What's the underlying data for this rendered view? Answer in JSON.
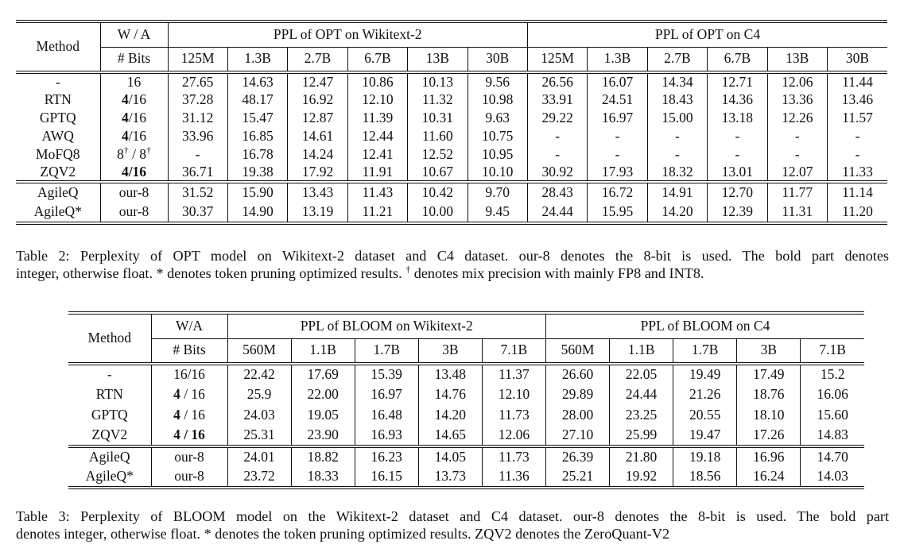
{
  "page": {
    "background": "#ffffff",
    "text_color": "#111111"
  },
  "table2": {
    "header": {
      "method": "Method",
      "wa_top": "W / A",
      "wa_bottom": "# Bits",
      "group1": "PPL of OPT on Wikitext-2",
      "group2": "PPL of OPT on C4",
      "sizes1": [
        "125M",
        "1.3B",
        "2.7B",
        "6.7B",
        "13B",
        "30B"
      ],
      "sizes2": [
        "125M",
        "1.3B",
        "2.7B",
        "6.7B",
        "13B",
        "30B"
      ]
    },
    "body": [
      {
        "method": "-",
        "wa": [
          "16"
        ],
        "vals": [
          "27.65",
          "14.63",
          "12.47",
          "10.86",
          "10.13",
          "9.56",
          "26.56",
          "16.07",
          "14.34",
          "12.71",
          "12.06",
          "11.44"
        ]
      },
      {
        "method": "RTN",
        "wa": [
          {
            "b": "4"
          },
          "/16"
        ],
        "vals": [
          "37.28",
          "48.17",
          "16.92",
          "12.10",
          "11.32",
          "10.98",
          "33.91",
          "24.51",
          "18.43",
          "14.36",
          "13.36",
          "13.46"
        ]
      },
      {
        "method": "GPTQ",
        "wa": [
          {
            "b": "4"
          },
          "/16"
        ],
        "vals": [
          "31.12",
          "15.47",
          "12.87",
          "11.39",
          "10.31",
          "9.63",
          "29.22",
          "16.97",
          "15.00",
          "13.18",
          "12.26",
          "11.57"
        ]
      },
      {
        "method": "AWQ",
        "wa": [
          {
            "b": "4"
          },
          "/16"
        ],
        "vals": [
          "33.96",
          "16.85",
          "14.61",
          "12.44",
          "11.60",
          "10.75",
          "-",
          "-",
          "-",
          "-",
          "-",
          "-"
        ]
      },
      {
        "method": "MoFQ8",
        "wa": [
          "8",
          {
            "sup": "†"
          },
          " / 8",
          {
            "sup": "†"
          }
        ],
        "vals": [
          "-",
          "16.78",
          "14.24",
          "12.41",
          "12.52",
          "10.95",
          "-",
          "-",
          "-",
          "-",
          "-",
          "-"
        ]
      },
      {
        "method": "ZQV2",
        "wa": [
          {
            "b": "4/16"
          }
        ],
        "vals": [
          "36.71",
          "19.38",
          "17.92",
          "11.91",
          "10.67",
          "10.10",
          "30.92",
          "17.93",
          "18.32",
          "13.01",
          "12.07",
          "11.33"
        ]
      }
    ],
    "ours": [
      {
        "method": "AgileQ",
        "wa": [
          "our-8"
        ],
        "vals": [
          "31.52",
          "15.90",
          "13.43",
          "11.43",
          "10.42",
          "9.70",
          "28.43",
          "16.72",
          "14.91",
          "12.70",
          "11.77",
          "11.14"
        ]
      },
      {
        "method": "AgileQ*",
        "wa": [
          "our-8"
        ],
        "vals": [
          "30.37",
          "14.90",
          "13.19",
          "11.21",
          "10.00",
          "9.45",
          "24.44",
          "15.95",
          "14.20",
          "12.39",
          "11.31",
          "11.20"
        ]
      }
    ],
    "caption": {
      "line1": [
        "Table 2: Perplexity of OPT model on Wikitext-2 dataset and C4 dataset. our-8 denotes the 8-bit is used. The bold part denotes"
      ],
      "line2": [
        "integer, otherwise float. * denotes token pruning optimized results. ",
        {
          "sup": "†"
        },
        " denotes mix precision with mainly FP8 and INT8."
      ]
    }
  },
  "table3": {
    "header": {
      "method": "Method",
      "wa_top": "W/A",
      "wa_bottom": "# Bits",
      "group1": "PPL of BLOOM on Wikitext-2",
      "group2": "PPL of BLOOM on C4",
      "sizes1": [
        "560M",
        "1.1B",
        "1.7B",
        "3B",
        "7.1B"
      ],
      "sizes2": [
        "560M",
        "1.1B",
        "1.7B",
        "3B",
        "7.1B"
      ]
    },
    "body": [
      {
        "method": "-",
        "wa": [
          "16/16"
        ],
        "vals": [
          "22.42",
          "17.69",
          "15.39",
          "13.48",
          "11.37",
          "26.60",
          "22.05",
          "19.49",
          "17.49",
          "15.2"
        ]
      },
      {
        "method": "RTN",
        "wa": [
          {
            "b": "4"
          },
          " / 16"
        ],
        "vals": [
          "25.9",
          "22.00",
          "16.97",
          "14.76",
          "12.10",
          "29.89",
          "24.44",
          "21.26",
          "18.76",
          "16.06"
        ]
      },
      {
        "method": "GPTQ",
        "wa": [
          {
            "b": "4"
          },
          " / 16"
        ],
        "vals": [
          "24.03",
          "19.05",
          "16.48",
          "14.20",
          "11.73",
          "28.00",
          "23.25",
          "20.55",
          "18.10",
          "15.60"
        ]
      },
      {
        "method": "ZQV2",
        "wa": [
          {
            "b": "4 / 16"
          }
        ],
        "vals": [
          "25.31",
          "23.90",
          "16.93",
          "14.65",
          "12.06",
          "27.10",
          "25.99",
          "19.47",
          "17.26",
          "14.83"
        ]
      }
    ],
    "ours": [
      {
        "method": "AgileQ",
        "wa": [
          "our-8"
        ],
        "vals": [
          "24.01",
          "18.82",
          "16.23",
          "14.05",
          "11.73",
          "26.39",
          "21.80",
          "19.18",
          "16.96",
          "14.70"
        ]
      },
      {
        "method": "AgileQ*",
        "wa": [
          "our-8"
        ],
        "vals": [
          "23.72",
          "18.33",
          "16.15",
          "13.73",
          "11.36",
          "25.21",
          "19.92",
          "18.56",
          "16.24",
          "14.03"
        ]
      }
    ],
    "caption": {
      "line1": [
        "Table 3: Perplexity of BLOOM model on the Wikitext-2 dataset and C4 dataset. our-8 denotes the 8-bit is used. The bold part"
      ],
      "line2": [
        "denotes integer, otherwise float. * denotes the token pruning optimized results. ZQV2 denotes the ZeroQuant-V2"
      ]
    }
  }
}
